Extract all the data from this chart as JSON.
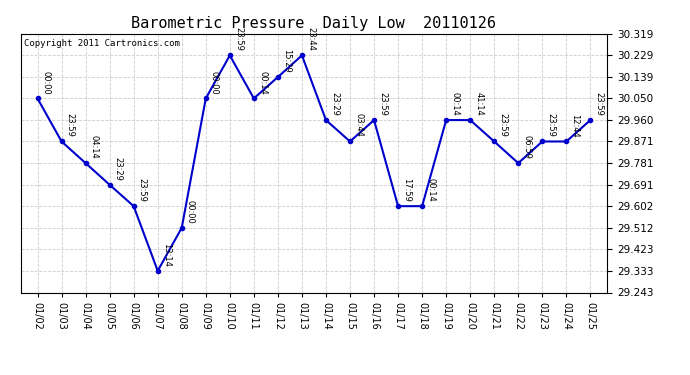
{
  "title": "Barometric Pressure  Daily Low  20110126",
  "copyright": "Copyright 2011 Cartronics.com",
  "x_labels": [
    "01/02",
    "01/03",
    "01/04",
    "01/05",
    "01/06",
    "01/07",
    "01/08",
    "01/09",
    "01/10",
    "01/11",
    "01/12",
    "01/13",
    "01/14",
    "01/15",
    "01/16",
    "01/17",
    "01/18",
    "01/19",
    "01/20",
    "01/21",
    "01/22",
    "01/23",
    "01/24",
    "01/25"
  ],
  "y_values": [
    30.05,
    29.871,
    29.781,
    29.691,
    29.602,
    29.333,
    29.512,
    30.05,
    30.229,
    30.05,
    30.139,
    30.229,
    29.96,
    29.871,
    29.96,
    29.602,
    29.602,
    29.96,
    29.96,
    29.871,
    29.781,
    29.871,
    29.871,
    29.96
  ],
  "point_labels": [
    "00:00",
    "23:59",
    "04:14",
    "23:29",
    "23:59",
    "13:14",
    "00:00",
    "00:00",
    "23:59",
    "00:14",
    "15:29",
    "23:44",
    "23:29",
    "03:44",
    "23:59",
    "17:59",
    "00:14",
    "00:14",
    "41:14",
    "23:59",
    "06:59",
    "23:59",
    "12:44",
    "23:59"
  ],
  "line_color": "#0000cc",
  "marker_color": "#0000cc",
  "bg_color": "#ffffff",
  "grid_color": "#cccccc",
  "ylim_min": 29.243,
  "ylim_max": 30.319,
  "yticks": [
    29.243,
    29.333,
    29.423,
    29.512,
    29.602,
    29.691,
    29.781,
    29.871,
    29.96,
    30.05,
    30.139,
    30.229,
    30.319
  ],
  "title_fontsize": 11,
  "tick_fontsize": 7,
  "ylabel_fontsize": 7.5,
  "point_label_fontsize": 6
}
